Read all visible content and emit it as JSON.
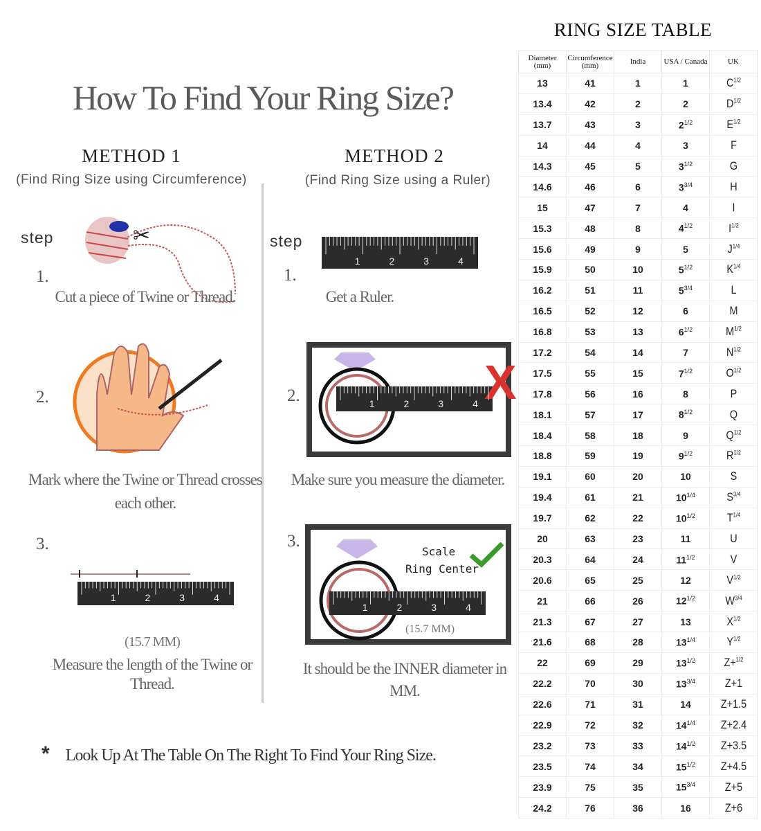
{
  "title": "How To Find Your Ring Size?",
  "method1": {
    "heading": "METHOD 1",
    "subtitle": "(Find Ring Size using Circumference)",
    "step_label": "step",
    "steps": [
      {
        "num": "1.",
        "caption": "Cut a piece of  Twine or Thread."
      },
      {
        "num": "2.",
        "caption": "Mark where the Twine or Thread crosses each other."
      },
      {
        "num": "3.",
        "measure": "(15.7 MM)",
        "caption": "Measure the length of the Twine or Thread."
      }
    ]
  },
  "method2": {
    "heading": "METHOD 2",
    "subtitle": "(Find Ring Size using a Ruler)",
    "step_label": "step",
    "steps": [
      {
        "num": "1.",
        "caption": "Get a Ruler."
      },
      {
        "num": "2.",
        "caption": "Make sure you measure the diameter."
      },
      {
        "num": "3.",
        "scale_text": "Scale",
        "center_text": "Ring Center",
        "measure": "(15.7 MM)",
        "caption": "It should be the INNER diameter in MM."
      }
    ]
  },
  "ruler_labels": [
    "1",
    "2",
    "3",
    "4"
  ],
  "note": {
    "star": "*",
    "text": "Look Up  At The Table On The Right To Find Your Ring Size."
  },
  "colors": {
    "ruler": "#2b2b2b",
    "wrong_mark": "#d9332f",
    "check": "#3a9a2a",
    "diamond": "#c9b6e8",
    "ring": "#b86a6a"
  },
  "table": {
    "title": "RING SIZE TABLE",
    "headers": [
      "Diameter (mm)",
      "Circumference (mm)",
      "India",
      "USA / Canada",
      "UK"
    ],
    "rows": [
      [
        "13",
        "41",
        "1",
        [
          "1",
          ""
        ],
        [
          "C",
          "1/2"
        ]
      ],
      [
        "13.4",
        "42",
        "2",
        [
          "2",
          ""
        ],
        [
          "D",
          "1/2"
        ]
      ],
      [
        "13.7",
        "43",
        "3",
        [
          "2",
          "1/2"
        ],
        [
          "E",
          "1/2"
        ]
      ],
      [
        "14",
        "44",
        "4",
        [
          "3",
          ""
        ],
        [
          "F",
          ""
        ]
      ],
      [
        "14.3",
        "45",
        "5",
        [
          "3",
          "1/2"
        ],
        [
          "G",
          ""
        ]
      ],
      [
        "14.6",
        "46",
        "6",
        [
          "3",
          "3/4"
        ],
        [
          "H",
          ""
        ]
      ],
      [
        "15",
        "47",
        "7",
        [
          "4",
          ""
        ],
        [
          "I",
          ""
        ]
      ],
      [
        "15.3",
        "48",
        "8",
        [
          "4",
          "1/2"
        ],
        [
          "I",
          "1/2"
        ]
      ],
      [
        "15.6",
        "49",
        "9",
        [
          "5",
          ""
        ],
        [
          "J",
          "1/4"
        ]
      ],
      [
        "15.9",
        "50",
        "10",
        [
          "5",
          "1/2"
        ],
        [
          "K",
          "1/4"
        ]
      ],
      [
        "16.2",
        "51",
        "11",
        [
          "5",
          "3/4"
        ],
        [
          "L",
          ""
        ]
      ],
      [
        "16.5",
        "52",
        "12",
        [
          "6",
          ""
        ],
        [
          "M",
          ""
        ]
      ],
      [
        "16.8",
        "53",
        "13",
        [
          "6",
          "1/2"
        ],
        [
          "M",
          "1/2"
        ]
      ],
      [
        "17.2",
        "54",
        "14",
        [
          "7",
          ""
        ],
        [
          "N",
          "1/2"
        ]
      ],
      [
        "17.5",
        "55",
        "15",
        [
          "7",
          "1/2"
        ],
        [
          "O",
          "1/2"
        ]
      ],
      [
        "17.8",
        "56",
        "16",
        [
          "8",
          ""
        ],
        [
          "P",
          ""
        ]
      ],
      [
        "18.1",
        "57",
        "17",
        [
          "8",
          "1/2"
        ],
        [
          "Q",
          ""
        ]
      ],
      [
        "18.4",
        "58",
        "18",
        [
          "9",
          ""
        ],
        [
          "Q",
          "1/2"
        ]
      ],
      [
        "18.8",
        "59",
        "19",
        [
          "9",
          "1/2"
        ],
        [
          "R",
          "1/2"
        ]
      ],
      [
        "19.1",
        "60",
        "20",
        [
          "10",
          ""
        ],
        [
          "S",
          ""
        ]
      ],
      [
        "19.4",
        "61",
        "21",
        [
          "10",
          "1/4"
        ],
        [
          "S",
          "3/4"
        ]
      ],
      [
        "19.7",
        "62",
        "22",
        [
          "10",
          "1/2"
        ],
        [
          "T",
          "1/4"
        ]
      ],
      [
        "20",
        "63",
        "23",
        [
          "11",
          ""
        ],
        [
          "U",
          ""
        ]
      ],
      [
        "20.3",
        "64",
        "24",
        [
          "11",
          "1/2"
        ],
        [
          "V",
          ""
        ]
      ],
      [
        "20.6",
        "65",
        "25",
        [
          "12",
          ""
        ],
        [
          "V",
          "1/2"
        ]
      ],
      [
        "21",
        "66",
        "26",
        [
          "12",
          "1/2"
        ],
        [
          "W",
          "3/4"
        ]
      ],
      [
        "21.3",
        "67",
        "27",
        [
          "13",
          ""
        ],
        [
          "X",
          "1/2"
        ]
      ],
      [
        "21.6",
        "68",
        "28",
        [
          "13",
          "1/4"
        ],
        [
          "Y",
          "1/2"
        ]
      ],
      [
        "22",
        "69",
        "29",
        [
          "13",
          "1/2"
        ],
        [
          "Z+",
          "1/2"
        ]
      ],
      [
        "22.2",
        "70",
        "30",
        [
          "13",
          "3/4"
        ],
        [
          "Z+1",
          ""
        ]
      ],
      [
        "22.6",
        "71",
        "31",
        [
          "14",
          ""
        ],
        [
          "Z+1.5",
          ""
        ]
      ],
      [
        "22.9",
        "72",
        "32",
        [
          "14",
          "1/4"
        ],
        [
          "Z+2.4",
          ""
        ]
      ],
      [
        "23.2",
        "73",
        "33",
        [
          "14",
          "1/2"
        ],
        [
          "Z+3.5",
          ""
        ]
      ],
      [
        "23.5",
        "74",
        "34",
        [
          "15",
          "1/2"
        ],
        [
          "Z+4.5",
          ""
        ]
      ],
      [
        "23.9",
        "75",
        "35",
        [
          "15",
          "3/4"
        ],
        [
          "Z+5",
          ""
        ]
      ],
      [
        "24.2",
        "76",
        "36",
        [
          "16",
          ""
        ],
        [
          "Z+6",
          ""
        ]
      ]
    ]
  }
}
